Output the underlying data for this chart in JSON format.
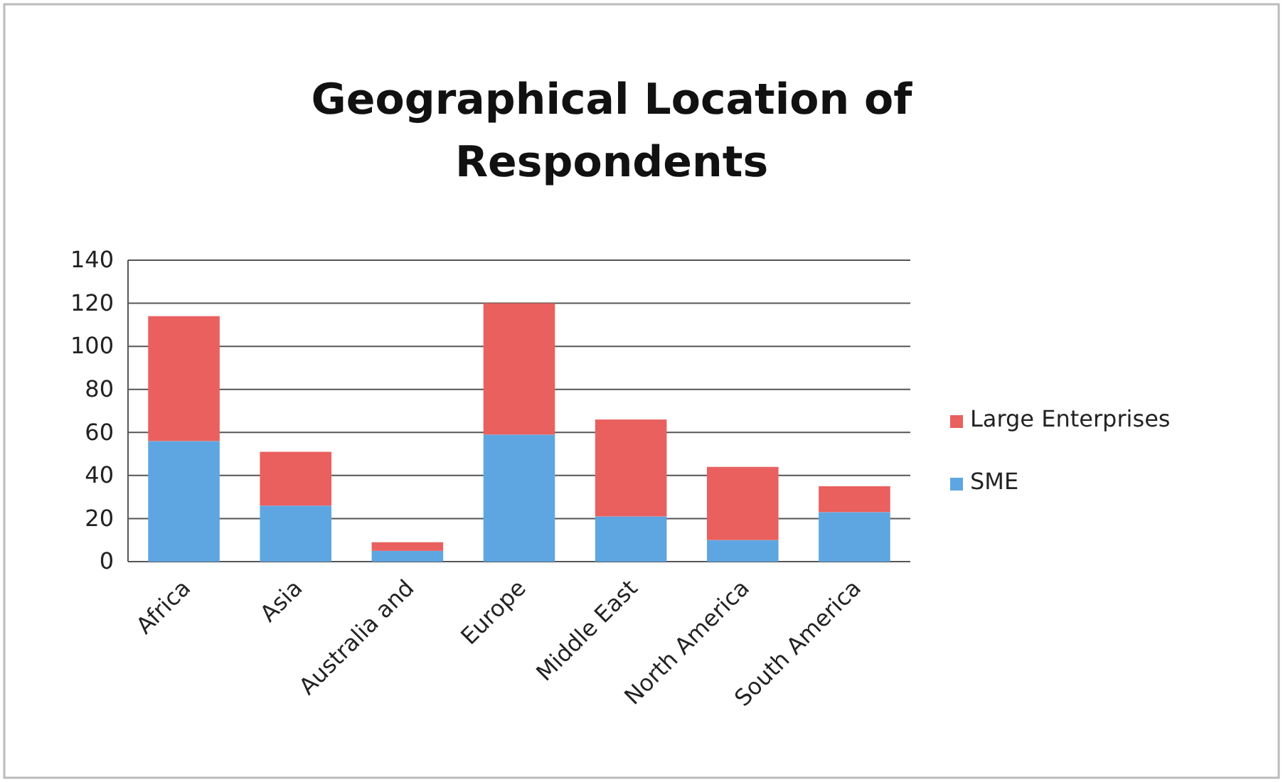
{
  "chart_data": {
    "type": "bar",
    "title": "Geographical Location of Respondents",
    "categories": [
      "Africa",
      "Asia",
      "Australia and",
      "Europe",
      "Middle East",
      "North America",
      "South America"
    ],
    "stacked": true,
    "series": [
      {
        "name": "SME",
        "color": "#5ea6e2",
        "values": [
          56,
          26,
          5,
          59,
          21,
          10,
          23
        ]
      },
      {
        "name": "Large Enterprises",
        "color": "#e9605e",
        "values": [
          58,
          25,
          4,
          61,
          45,
          34,
          12
        ]
      }
    ],
    "ylim": [
      0,
      140
    ],
    "yticks": [
      0,
      20,
      40,
      60,
      80,
      100,
      120,
      140
    ],
    "grid": "y",
    "legend": "right"
  }
}
